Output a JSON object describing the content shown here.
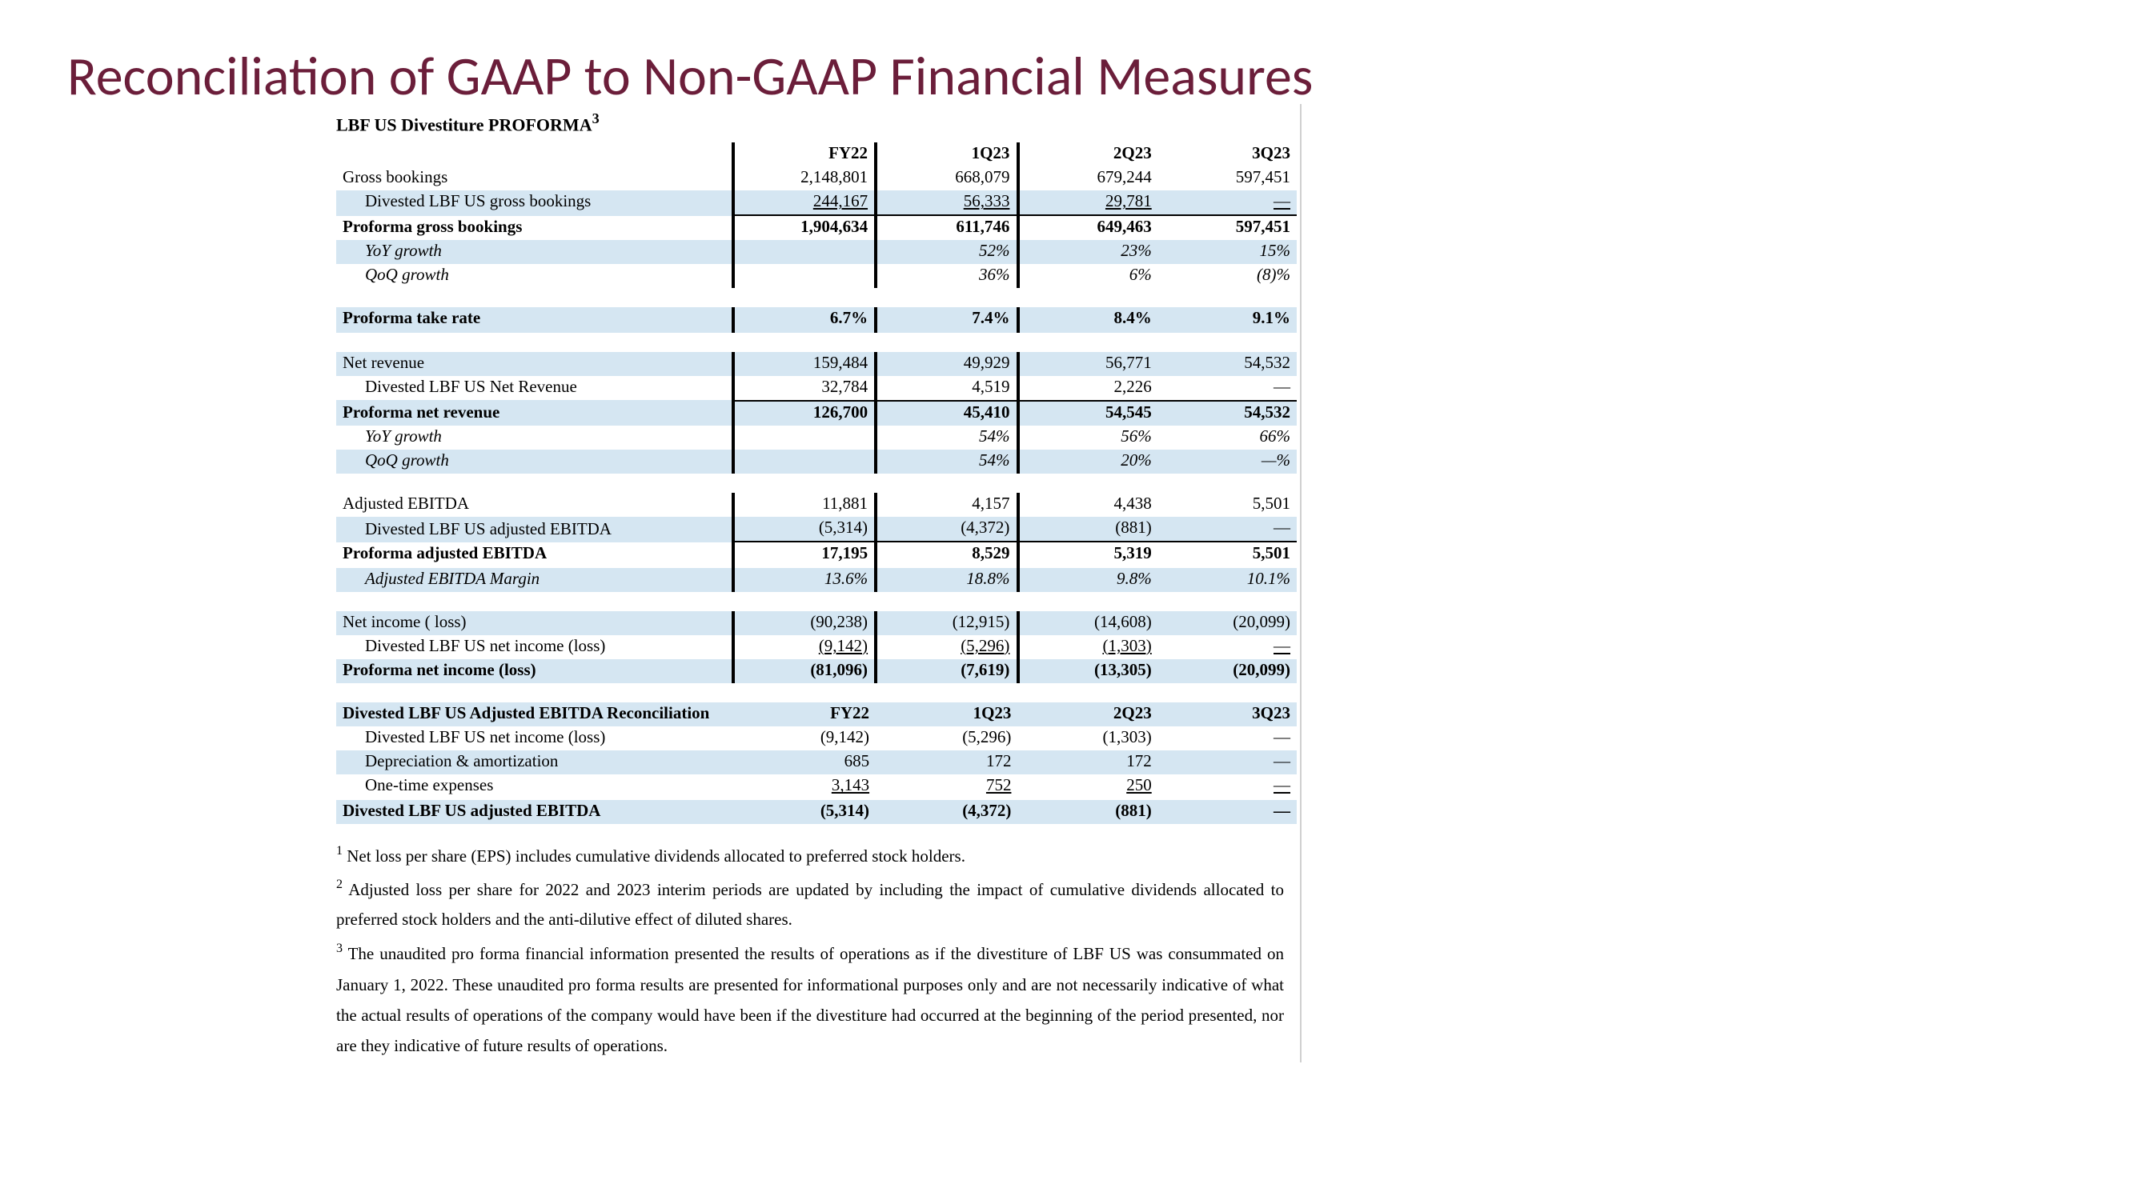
{
  "title": "Reconciliation of GAAP to Non-GAAP Financial Measures",
  "subtitle": "LBF US Divestiture PROFORMA",
  "subtitle_sup": "3",
  "cols": {
    "c1": "FY22",
    "c2": "1Q23",
    "c3": "2Q23",
    "c4": "3Q23"
  },
  "rows": [
    {
      "label": "Gross bookings",
      "v": [
        "2,148,801",
        "668,079",
        "679,244",
        "597,451"
      ]
    },
    {
      "label": "Divested LBF US gross bookings",
      "indent": true,
      "underline": true,
      "v": [
        "244,167",
        "56,333",
        "29,781",
        "—"
      ],
      "shade": true
    },
    {
      "label": "Proforma gross bookings",
      "bold": true,
      "btop": true,
      "v": [
        "1,904,634",
        "611,746",
        "649,463",
        "597,451"
      ]
    },
    {
      "label": "YoY growth",
      "indent": true,
      "italic": true,
      "shade": true,
      "v": [
        "",
        "52%",
        "23%",
        "15%"
      ]
    },
    {
      "label": "QoQ growth",
      "indent": true,
      "italic": true,
      "v": [
        "",
        "36%",
        "6%",
        "(8)%"
      ]
    }
  ],
  "rows2": [
    {
      "label": "Proforma take rate",
      "bold": true,
      "shade": true,
      "v": [
        "6.7%",
        "7.4%",
        "8.4%",
        "9.1%"
      ]
    }
  ],
  "rows3": [
    {
      "label": "Net revenue",
      "shade": true,
      "v": [
        "159,484",
        "49,929",
        "56,771",
        "54,532"
      ]
    },
    {
      "label": "Divested LBF US Net Revenue",
      "indent": true,
      "v": [
        "32,784",
        "4,519",
        "2,226",
        "—"
      ]
    },
    {
      "label": "Proforma net revenue",
      "bold": true,
      "btop": true,
      "shade": true,
      "v": [
        "126,700",
        "45,410",
        "54,545",
        "54,532"
      ]
    },
    {
      "label": "YoY growth",
      "indent": true,
      "italic": true,
      "v": [
        "",
        "54%",
        "56%",
        "66%"
      ]
    },
    {
      "label": "QoQ growth",
      "indent": true,
      "italic": true,
      "shade": true,
      "v": [
        "",
        "54%",
        "20%",
        "—%"
      ]
    }
  ],
  "rows4": [
    {
      "label": "Adjusted EBITDA",
      "v": [
        "11,881",
        "4,157",
        "4,438",
        "5,501"
      ]
    },
    {
      "label": "Divested LBF US adjusted EBITDA",
      "indent": true,
      "shade": true,
      "v": [
        "(5,314)",
        "(4,372)",
        "(881)",
        "—"
      ]
    },
    {
      "label": "Proforma adjusted EBITDA",
      "bold": true,
      "btop": true,
      "v": [
        "17,195",
        "8,529",
        "5,319",
        "5,501"
      ]
    },
    {
      "label": "Adjusted EBITDA Margin",
      "indent": true,
      "italic": true,
      "shade": true,
      "v": [
        "13.6%",
        "18.8%",
        "9.8%",
        "10.1%"
      ]
    }
  ],
  "rows5": [
    {
      "label": "Net income ( loss)",
      "shade": true,
      "v": [
        "(90,238)",
        "(12,915)",
        "(14,608)",
        "(20,099)"
      ]
    },
    {
      "label": "Divested LBF US net income (loss)",
      "indent": true,
      "underline": true,
      "v": [
        "(9,142)",
        "(5,296)",
        "(1,303)",
        "—"
      ]
    },
    {
      "label": "Proforma net income (loss)",
      "bold": true,
      "shade": true,
      "v": [
        "(81,096)",
        "(7,619)",
        "(13,305)",
        "(20,099)"
      ]
    }
  ],
  "rows6hdr": {
    "label": "Divested LBF US Adjusted EBITDA Reconciliation"
  },
  "rows6": [
    {
      "label": "Divested LBF US net income (loss)",
      "indent": true,
      "v": [
        "(9,142)",
        "(5,296)",
        "(1,303)",
        "—"
      ]
    },
    {
      "label": "Depreciation & amortization",
      "indent": true,
      "shade": true,
      "v": [
        "685",
        "172",
        "172",
        "—"
      ]
    },
    {
      "label": "One-time expenses",
      "indent": true,
      "underline": true,
      "v": [
        "3,143",
        "752",
        "250",
        "—"
      ]
    },
    {
      "label": "Divested LBF US adjusted EBITDA",
      "bold": true,
      "shade": true,
      "v": [
        "(5,314)",
        "(4,372)",
        "(881)",
        "—"
      ]
    }
  ],
  "footnotes": [
    {
      "n": "1",
      "text": "Net loss per share (EPS) includes cumulative dividends allocated to preferred stock holders."
    },
    {
      "n": "2",
      "text": "Adjusted loss per share for 2022 and 2023 interim periods are updated by including the impact of cumulative dividends allocated to preferred stock holders and the anti-dilutive effect of diluted shares."
    },
    {
      "n": "3",
      "text": "The unaudited pro forma financial information presented the results of operations as if the divestiture of LBF US was consummated on January 1, 2022. These unaudited pro forma results are presented for informational purposes only and are not necessarily indicative of what the actual results of operations of the company would have been if the divestiture had occurred at the beginning of the period presented, nor are they indicative of future results of operations."
    }
  ]
}
